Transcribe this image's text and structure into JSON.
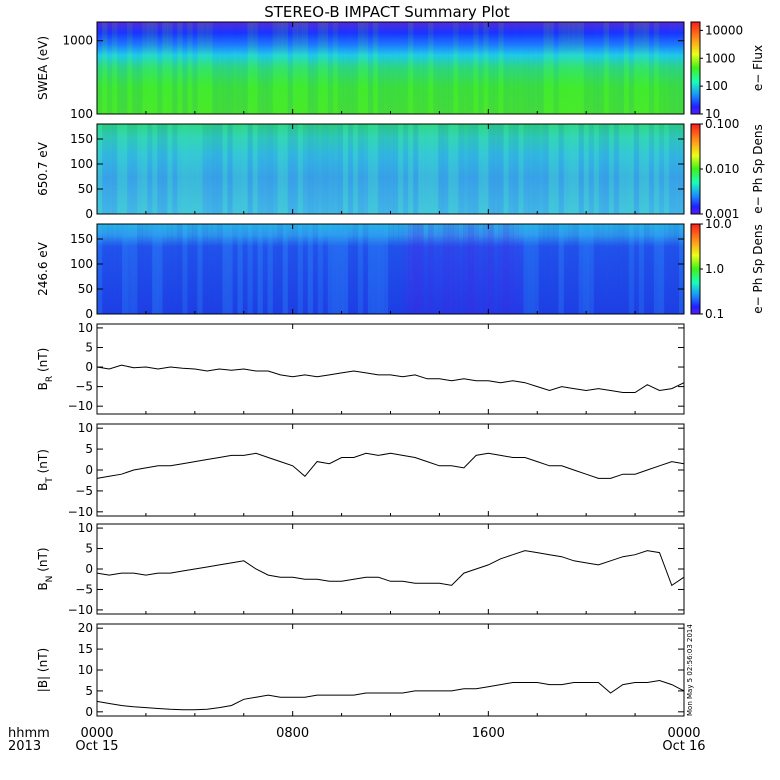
{
  "title": "STEREO-B IMPACT Summary Plot",
  "xaxis": {
    "ticks": [
      {
        "t": 0,
        "label": "0000",
        "sub": "Oct 15"
      },
      {
        "t": 8,
        "label": "0800",
        "sub": ""
      },
      {
        "t": 16,
        "label": "1600",
        "sub": ""
      },
      {
        "t": 24,
        "label": "0000",
        "sub": "Oct 16"
      }
    ],
    "prefix_top": "hhmm",
    "prefix_bottom": "2013"
  },
  "timestamp": "Mon May 5 02:56:03 2014",
  "colors": {
    "line": "#000000",
    "frame": "#000000"
  },
  "chart_data": [
    {
      "type": "heatmap",
      "ylabel": "SWEA (eV)",
      "ylog": true,
      "ylim": [
        100,
        1800
      ],
      "yticks": [
        {
          "v": 100,
          "label": "100"
        },
        {
          "v": 1000,
          "label": "1000"
        }
      ],
      "colorbar": {
        "label": "e− Flux",
        "log": true,
        "range": [
          10,
          20000
        ],
        "ticks": [
          {
            "v": 10,
            "label": "10"
          },
          {
            "v": 100,
            "label": "100"
          },
          {
            "v": 1000,
            "label": "1000"
          },
          {
            "v": 10000,
            "label": "10000"
          }
        ]
      }
    },
    {
      "type": "heatmap",
      "ylabel": "650.7 eV",
      "ylim": [
        0,
        180
      ],
      "yticks": [
        {
          "v": 0,
          "label": "0"
        },
        {
          "v": 50,
          "label": "50"
        },
        {
          "v": 100,
          "label": "100"
        },
        {
          "v": 150,
          "label": "150"
        }
      ],
      "colorbar": {
        "label": "e− Ph Sp Dens",
        "log": true,
        "range": [
          0.001,
          0.1
        ],
        "ticks": [
          {
            "v": 0.001,
            "label": "0.001"
          },
          {
            "v": 0.01,
            "label": "0.010"
          },
          {
            "v": 0.1,
            "label": "0.100"
          }
        ]
      }
    },
    {
      "type": "heatmap",
      "ylabel": "246.6 eV",
      "ylim": [
        0,
        180
      ],
      "yticks": [
        {
          "v": 0,
          "label": "0"
        },
        {
          "v": 50,
          "label": "50"
        },
        {
          "v": 100,
          "label": "100"
        },
        {
          "v": 150,
          "label": "150"
        }
      ],
      "colorbar": {
        "label": "e− Ph Sp Dens",
        "log": true,
        "range": [
          0.1,
          10
        ],
        "ticks": [
          {
            "v": 0.1,
            "label": "0.1"
          },
          {
            "v": 1,
            "label": "1.0"
          },
          {
            "v": 10,
            "label": "10.0"
          }
        ]
      }
    },
    {
      "type": "line",
      "ylabel": "B",
      "ysub": "R",
      "yunit": " (nT)",
      "ylim": [
        -12,
        11
      ],
      "yticks": [
        {
          "v": -10,
          "label": "−10"
        },
        {
          "v": -5,
          "label": "−5"
        },
        {
          "v": 0,
          "label": "0"
        },
        {
          "v": 5,
          "label": "5"
        },
        {
          "v": 10,
          "label": "10"
        }
      ],
      "x": [
        0,
        0.5,
        1,
        1.5,
        2,
        2.5,
        3,
        3.5,
        4,
        4.5,
        5,
        5.5,
        6,
        6.5,
        7,
        7.5,
        8,
        8.5,
        9,
        9.5,
        10,
        10.5,
        11,
        11.5,
        12,
        12.5,
        13,
        13.5,
        14,
        14.5,
        15,
        15.5,
        16,
        16.5,
        17,
        17.5,
        18,
        18.5,
        19,
        19.5,
        20,
        20.5,
        21,
        21.5,
        22,
        22.5,
        23,
        23.5,
        24
      ],
      "y": [
        0,
        -0.5,
        0.5,
        -0.2,
        0,
        -0.5,
        0,
        -0.3,
        -0.5,
        -1,
        -0.5,
        -0.8,
        -0.5,
        -1,
        -1,
        -2,
        -2.5,
        -2,
        -2.5,
        -2,
        -1.5,
        -1,
        -1.5,
        -2,
        -2,
        -2.5,
        -2,
        -3,
        -3,
        -3.5,
        -3,
        -3.5,
        -3.5,
        -4,
        -3.5,
        -4,
        -5,
        -6,
        -5,
        -5.5,
        -6,
        -5.5,
        -6,
        -6.5,
        -6.5,
        -4.5,
        -6,
        -5.5,
        -4
      ]
    },
    {
      "type": "line",
      "ylabel": "B",
      "ysub": "T",
      "yunit": " (nT)",
      "ylim": [
        -11,
        11
      ],
      "yticks": [
        {
          "v": -10,
          "label": "−10"
        },
        {
          "v": -5,
          "label": "−5"
        },
        {
          "v": 0,
          "label": "0"
        },
        {
          "v": 5,
          "label": "5"
        },
        {
          "v": 10,
          "label": "10"
        }
      ],
      "x": [
        0,
        0.5,
        1,
        1.5,
        2,
        2.5,
        3,
        3.5,
        4,
        4.5,
        5,
        5.5,
        6,
        6.5,
        7,
        7.5,
        8,
        8.5,
        9,
        9.5,
        10,
        10.5,
        11,
        11.5,
        12,
        12.5,
        13,
        13.5,
        14,
        14.5,
        15,
        15.5,
        16,
        16.5,
        17,
        17.5,
        18,
        18.5,
        19,
        19.5,
        20,
        20.5,
        21,
        21.5,
        22,
        22.5,
        23,
        23.5,
        24
      ],
      "y": [
        -2,
        -1.5,
        -1,
        0,
        0.5,
        1,
        1,
        1.5,
        2,
        2.5,
        3,
        3.5,
        3.5,
        4,
        3,
        2,
        1,
        -1.5,
        2,
        1.5,
        3,
        3,
        4,
        3.5,
        4,
        3.5,
        3,
        2,
        1,
        1,
        0.5,
        3.5,
        4,
        3.5,
        3,
        3,
        2,
        1,
        1,
        0,
        -1,
        -2,
        -2,
        -1,
        -1,
        0,
        1,
        2,
        1.5
      ]
    },
    {
      "type": "line",
      "ylabel": "B",
      "ysub": "N",
      "yunit": " (nT)",
      "ylim": [
        -11,
        11
      ],
      "yticks": [
        {
          "v": -10,
          "label": "−10"
        },
        {
          "v": -5,
          "label": "−5"
        },
        {
          "v": 0,
          "label": "0"
        },
        {
          "v": 5,
          "label": "5"
        },
        {
          "v": 10,
          "label": "10"
        }
      ],
      "x": [
        0,
        0.5,
        1,
        1.5,
        2,
        2.5,
        3,
        3.5,
        4,
        4.5,
        5,
        5.5,
        6,
        6.5,
        7,
        7.5,
        8,
        8.5,
        9,
        9.5,
        10,
        10.5,
        11,
        11.5,
        12,
        12.5,
        13,
        13.5,
        14,
        14.5,
        15,
        15.5,
        16,
        16.5,
        17,
        17.5,
        18,
        18.5,
        19,
        19.5,
        20,
        20.5,
        21,
        21.5,
        22,
        22.5,
        23,
        23.5,
        24
      ],
      "y": [
        -1,
        -1.5,
        -1,
        -1,
        -1.5,
        -1,
        -1,
        -0.5,
        0,
        0.5,
        1,
        1.5,
        2,
        0,
        -1.5,
        -2,
        -2,
        -2.5,
        -2.5,
        -3,
        -3,
        -2.5,
        -2,
        -2,
        -3,
        -3,
        -3.5,
        -3.5,
        -3.5,
        -4,
        -1,
        0,
        1,
        2.5,
        3.5,
        4.5,
        4,
        3.5,
        3,
        2,
        1.5,
        1,
        2,
        3,
        3.5,
        4.5,
        4,
        -4,
        -2
      ]
    },
    {
      "type": "line",
      "ylabel": "|B|",
      "yunit": " (nT)",
      "ylim": [
        -1,
        21
      ],
      "yticks": [
        {
          "v": 0,
          "label": "0"
        },
        {
          "v": 5,
          "label": "5"
        },
        {
          "v": 10,
          "label": "10"
        },
        {
          "v": 15,
          "label": "15"
        },
        {
          "v": 20,
          "label": "20"
        }
      ],
      "x": [
        0,
        0.5,
        1,
        1.5,
        2,
        2.5,
        3,
        3.5,
        4,
        4.5,
        5,
        5.5,
        6,
        6.5,
        7,
        7.5,
        8,
        8.5,
        9,
        9.5,
        10,
        10.5,
        11,
        11.5,
        12,
        12.5,
        13,
        13.5,
        14,
        14.5,
        15,
        15.5,
        16,
        16.5,
        17,
        17.5,
        18,
        18.5,
        19,
        19.5,
        20,
        20.5,
        21,
        21.5,
        22,
        22.5,
        23,
        23.5,
        24
      ],
      "y": [
        2.5,
        2,
        1.5,
        1.2,
        1,
        0.8,
        0.6,
        0.5,
        0.5,
        0.6,
        1,
        1.5,
        3,
        3.5,
        4,
        3.5,
        3.5,
        3.5,
        4,
        4,
        4,
        4,
        4.5,
        4.5,
        4.5,
        4.5,
        5,
        5,
        5,
        5,
        5.5,
        5.5,
        6,
        6.5,
        7,
        7,
        7,
        6.5,
        6.5,
        7,
        7,
        7,
        4.5,
        6.5,
        7,
        7,
        7.5,
        6.5,
        5
      ]
    }
  ]
}
